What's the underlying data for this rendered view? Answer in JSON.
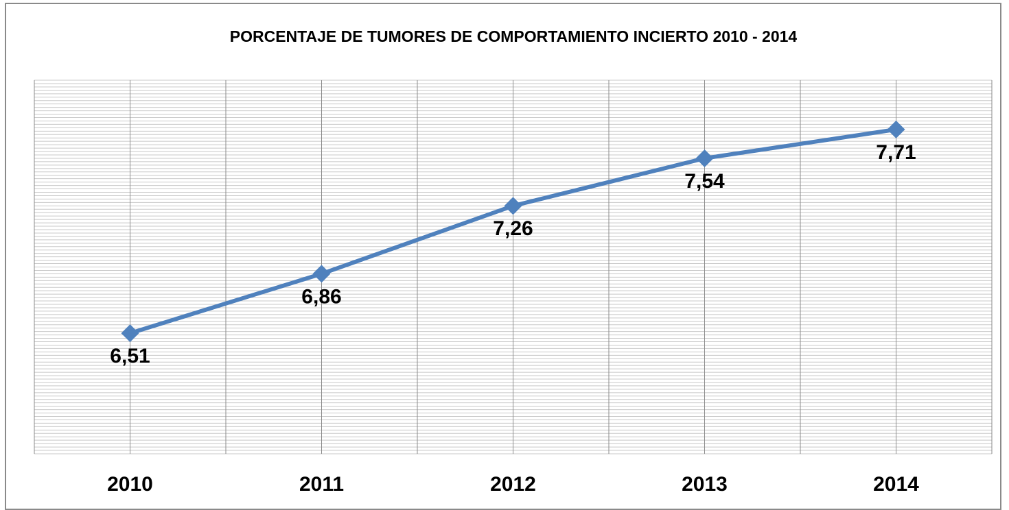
{
  "chart_data": {
    "type": "line",
    "title": "PORCENTAJE DE TUMORES DE COMPORTAMIENTO INCIERTO 2010 - 2014",
    "categories": [
      "2010",
      "2011",
      "2012",
      "2013",
      "2014"
    ],
    "values": [
      6.51,
      6.86,
      7.26,
      7.54,
      7.71
    ],
    "value_labels": [
      "6,51",
      "6,86",
      "7,26",
      "7,54",
      "7,71"
    ],
    "color": "#4f81bd",
    "ylim": [
      5.8,
      8.0
    ],
    "yticks": [
      5.8,
      5.82,
      5.84,
      5.86,
      5.88,
      5.9,
      5.92,
      5.94,
      5.96,
      5.98,
      6,
      6.02,
      6.04,
      6.06,
      6.08,
      6.1,
      6.12,
      6.14,
      6.16,
      6.18,
      6.2,
      6.22,
      6.24,
      6.26,
      6.28,
      6.3,
      6.32,
      6.34,
      6.36,
      6.38,
      6.4,
      6.42,
      6.44,
      6.46,
      6.48,
      6.5,
      6.52,
      6.54,
      6.56,
      6.58,
      6.6,
      6.62,
      6.64,
      6.66,
      6.68,
      6.7,
      6.72,
      6.74,
      6.76,
      6.78,
      6.8,
      6.82,
      6.84,
      6.86,
      6.88,
      6.9,
      6.92,
      6.94,
      6.96,
      6.98,
      7,
      7.02,
      7.04,
      7.06,
      7.08,
      7.1,
      7.12,
      7.14,
      7.16,
      7.18,
      7.2,
      7.22,
      7.24,
      7.26,
      7.28,
      7.3,
      7.32,
      7.34,
      7.36,
      7.38,
      7.4,
      7.42,
      7.44,
      7.46,
      7.48,
      7.5,
      7.52,
      7.54,
      7.56,
      7.58,
      7.6,
      7.62,
      7.64,
      7.66,
      7.68,
      7.7,
      7.72,
      7.74,
      7.76,
      7.78,
      7.8,
      7.82,
      7.84,
      7.86,
      7.88,
      7.9,
      7.92,
      7.94,
      7.96,
      7.98,
      8
    ],
    "grid": true
  }
}
